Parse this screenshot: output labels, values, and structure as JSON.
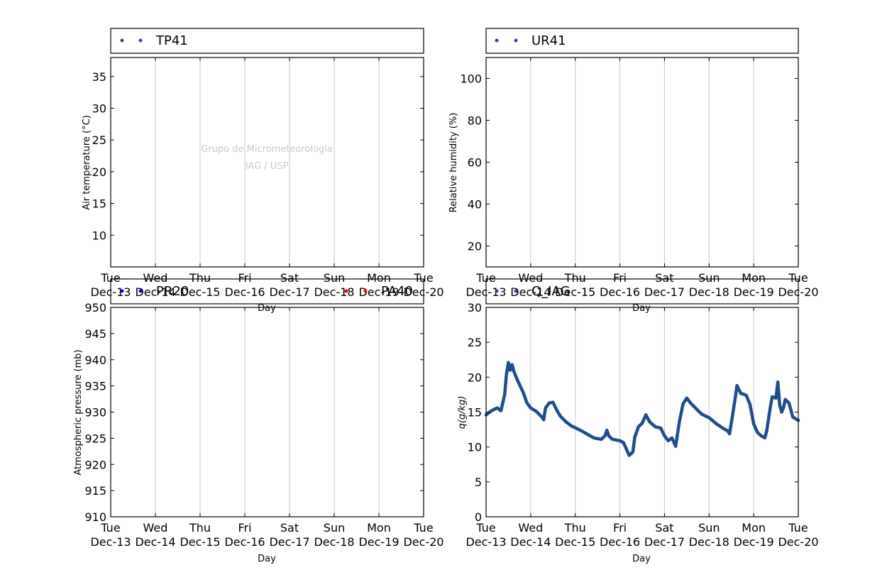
{
  "watermark": {
    "line1": "Grupo de Micrometeorologia",
    "line2": "IAG / USP"
  },
  "x_ticks": [
    {
      "day": "Tue",
      "date": "Dec-13"
    },
    {
      "day": "Wed",
      "date": "Dec-14"
    },
    {
      "day": "Thu",
      "date": "Dec-15"
    },
    {
      "day": "Fri",
      "date": "Dec-16"
    },
    {
      "day": "Sat",
      "date": "Dec-17"
    },
    {
      "day": "Sun",
      "date": "Dec-18"
    },
    {
      "day": "Mon",
      "date": "Dec-19"
    },
    {
      "day": "Tue",
      "date": "Dec-20"
    }
  ],
  "colors": {
    "series_blue": "#1f4e8c",
    "pr20": "#0000ff",
    "pa40": "#ff0000",
    "grid": "#c8c8c8"
  },
  "chart_data": [
    {
      "id": "temp",
      "type": "scatter",
      "title": "",
      "xlabel": "Day",
      "ylabel": "Air temperature (°C)",
      "x_range": [
        "2016-12-13",
        "2016-12-20"
      ],
      "ylim": [
        5,
        38
      ],
      "yticks": [
        10,
        15,
        20,
        25,
        30,
        35
      ],
      "grid": "vertical",
      "legend_position": "top",
      "series": [
        {
          "name": "TP41",
          "color": "#1f4e8c",
          "points": []
        }
      ]
    },
    {
      "id": "rh",
      "type": "scatter",
      "title": "",
      "xlabel": "Day",
      "ylabel": "Relative humidity (%)",
      "x_range": [
        "2016-12-13",
        "2016-12-20"
      ],
      "ylim": [
        10,
        110
      ],
      "yticks": [
        20,
        40,
        60,
        80,
        100
      ],
      "grid": "vertical",
      "legend_position": "top",
      "series": [
        {
          "name": "UR41",
          "color": "#1f4e8c",
          "points": []
        }
      ]
    },
    {
      "id": "pressure",
      "type": "scatter",
      "title": "",
      "xlabel": "Day",
      "ylabel": "Atmospheric pressure (mb)",
      "x_range": [
        "2016-12-13",
        "2016-12-20"
      ],
      "ylim": [
        910,
        950
      ],
      "yticks": [
        910,
        915,
        920,
        925,
        930,
        935,
        940,
        945,
        950
      ],
      "grid": "vertical",
      "legend_position": "top",
      "series": [
        {
          "name": "PR20",
          "color": "#0000ff",
          "points": []
        },
        {
          "name": "PA40",
          "color": "#ff0000",
          "points": []
        }
      ]
    },
    {
      "id": "q",
      "type": "scatter",
      "title": "",
      "xlabel": "Day",
      "ylabel": "q(g/kg)",
      "x_range": [
        "2016-12-13",
        "2016-12-20"
      ],
      "ylim": [
        0,
        30
      ],
      "yticks": [
        0,
        5,
        10,
        15,
        20,
        25,
        30
      ],
      "grid": "vertical",
      "legend_position": "top",
      "series": [
        {
          "name": "Q_IAG",
          "color": "#1f4e8c",
          "points": [
            [
              "2016-12-13 00:00",
              14.6
            ],
            [
              "2016-12-13 03:00",
              15.2
            ],
            [
              "2016-12-13 06:00",
              15.6
            ],
            [
              "2016-12-13 08:00",
              15.2
            ],
            [
              "2016-12-13 10:00",
              17.5
            ],
            [
              "2016-12-13 11:00",
              20.5
            ],
            [
              "2016-12-13 12:00",
              22.1
            ],
            [
              "2016-12-13 13:00",
              21.0
            ],
            [
              "2016-12-13 14:00",
              21.8
            ],
            [
              "2016-12-13 15:00",
              20.8
            ],
            [
              "2016-12-13 17:00",
              19.5
            ],
            [
              "2016-12-13 20:00",
              17.8
            ],
            [
              "2016-12-13 22:00",
              16.3
            ],
            [
              "2016-12-14 00:00",
              15.6
            ],
            [
              "2016-12-14 03:00",
              15.1
            ],
            [
              "2016-12-14 06:00",
              14.3
            ],
            [
              "2016-12-14 07:00",
              13.9
            ],
            [
              "2016-12-14 08:00",
              15.6
            ],
            [
              "2016-12-14 10:00",
              16.3
            ],
            [
              "2016-12-14 12:00",
              16.4
            ],
            [
              "2016-12-14 14:00",
              15.3
            ],
            [
              "2016-12-14 16:00",
              14.4
            ],
            [
              "2016-12-14 19:00",
              13.6
            ],
            [
              "2016-12-14 22:00",
              13.0
            ],
            [
              "2016-12-15 02:00",
              12.5
            ],
            [
              "2016-12-15 06:00",
              11.9
            ],
            [
              "2016-12-15 10:00",
              11.3
            ],
            [
              "2016-12-15 14:00",
              11.1
            ],
            [
              "2016-12-15 16:00",
              11.6
            ],
            [
              "2016-12-15 17:00",
              12.4
            ],
            [
              "2016-12-15 18:00",
              11.6
            ],
            [
              "2016-12-15 20:00",
              11.1
            ],
            [
              "2016-12-16 00:00",
              10.9
            ],
            [
              "2016-12-16 02:00",
              10.6
            ],
            [
              "2016-12-16 04:00",
              9.4
            ],
            [
              "2016-12-16 05:00",
              8.8
            ],
            [
              "2016-12-16 07:00",
              9.3
            ],
            [
              "2016-12-16 08:00",
              11.4
            ],
            [
              "2016-12-16 10:00",
              12.9
            ],
            [
              "2016-12-16 12:00",
              13.4
            ],
            [
              "2016-12-16 14:00",
              14.6
            ],
            [
              "2016-12-16 16:00",
              13.6
            ],
            [
              "2016-12-16 19:00",
              12.9
            ],
            [
              "2016-12-16 22:00",
              12.7
            ],
            [
              "2016-12-17 00:00",
              11.6
            ],
            [
              "2016-12-17 02:00",
              10.9
            ],
            [
              "2016-12-17 04:00",
              11.3
            ],
            [
              "2016-12-17 06:00",
              10.1
            ],
            [
              "2016-12-17 08:00",
              13.6
            ],
            [
              "2016-12-17 10:00",
              16.2
            ],
            [
              "2016-12-17 12:00",
              17.0
            ],
            [
              "2016-12-17 14:00",
              16.3
            ],
            [
              "2016-12-17 17:00",
              15.5
            ],
            [
              "2016-12-17 20:00",
              14.7
            ],
            [
              "2016-12-18 00:00",
              14.2
            ],
            [
              "2016-12-18 04:00",
              13.3
            ],
            [
              "2016-12-18 08:00",
              12.6
            ],
            [
              "2016-12-18 10:00",
              12.3
            ],
            [
              "2016-12-18 11:00",
              11.9
            ],
            [
              "2016-12-18 12:00",
              13.5
            ],
            [
              "2016-12-18 14:00",
              16.9
            ],
            [
              "2016-12-18 15:00",
              18.8
            ],
            [
              "2016-12-18 17:00",
              17.7
            ],
            [
              "2016-12-18 20:00",
              17.4
            ],
            [
              "2016-12-18 22:00",
              16.1
            ],
            [
              "2016-12-19 00:00",
              13.3
            ],
            [
              "2016-12-19 02:00",
              12.1
            ],
            [
              "2016-12-19 04:00",
              11.6
            ],
            [
              "2016-12-19 06:00",
              11.3
            ],
            [
              "2016-12-19 07:00",
              12.3
            ],
            [
              "2016-12-19 09:00",
              15.8
            ],
            [
              "2016-12-19 10:00",
              17.2
            ],
            [
              "2016-12-19 12:00",
              17.0
            ],
            [
              "2016-12-19 13:00",
              19.3
            ],
            [
              "2016-12-19 14:00",
              16.0
            ],
            [
              "2016-12-19 15:00",
              15.0
            ],
            [
              "2016-12-19 16:00",
              15.6
            ],
            [
              "2016-12-19 17:00",
              16.8
            ],
            [
              "2016-12-19 19:00",
              16.3
            ],
            [
              "2016-12-19 21:00",
              14.3
            ],
            [
              "2016-12-20 00:00",
              13.8
            ]
          ]
        }
      ]
    }
  ]
}
